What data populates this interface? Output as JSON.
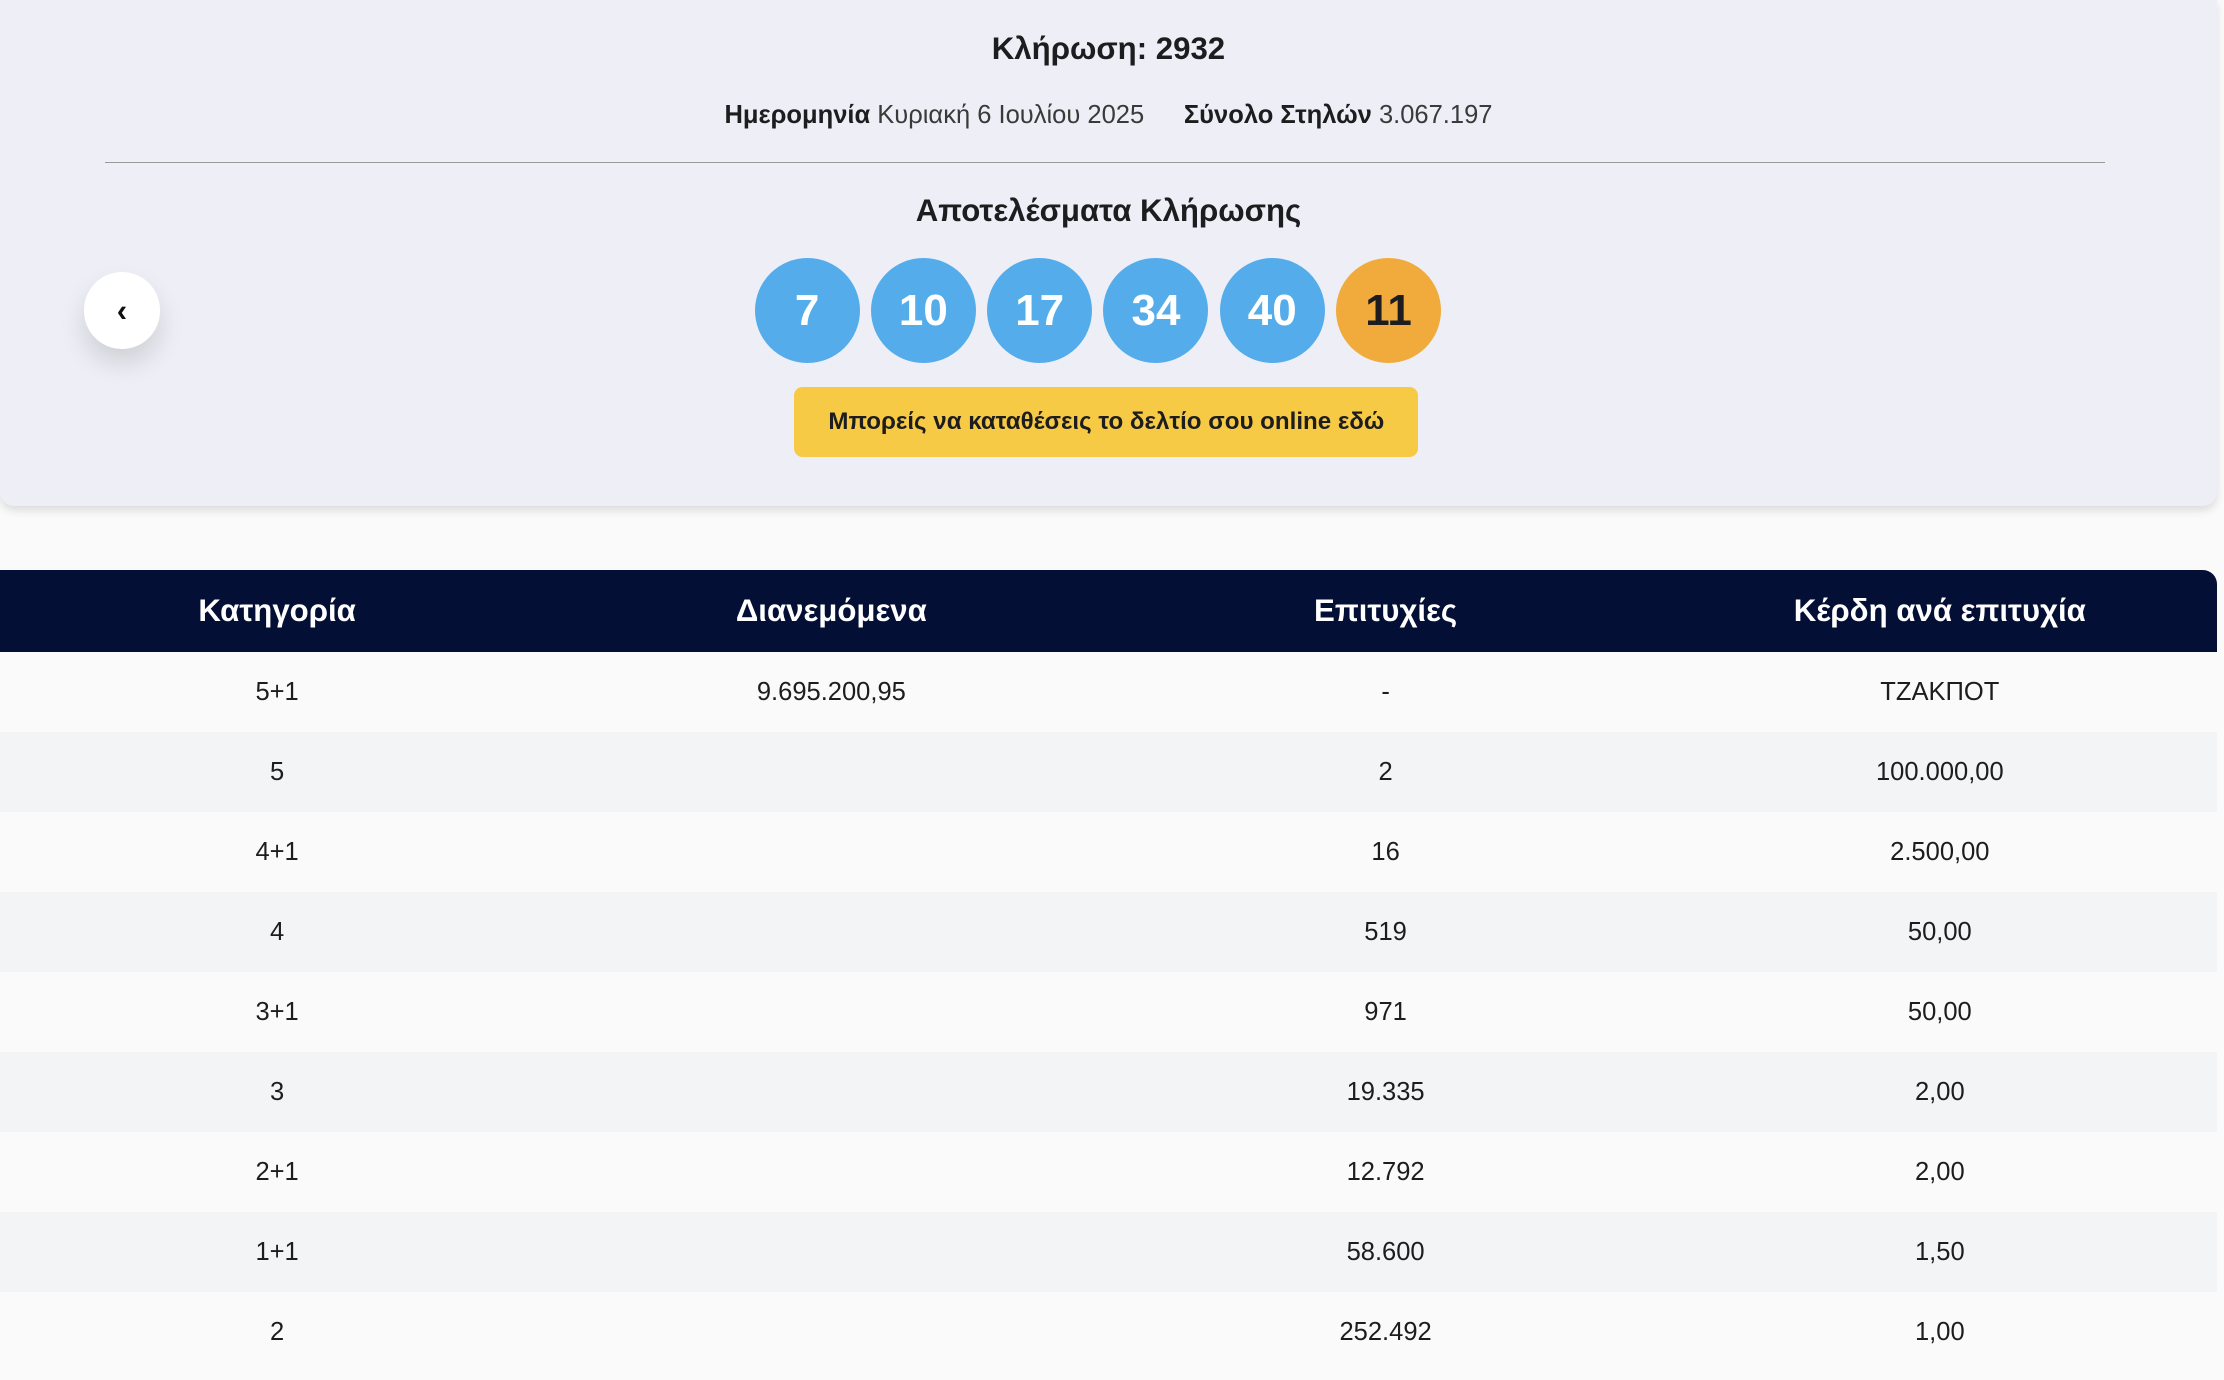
{
  "draw": {
    "title": "Κλήρωση: 2932",
    "date_label": "Ημερομηνία",
    "date_value": "Κυριακή 6 Ιουλίου 2025",
    "columns_label": "Σύνολο Στηλών",
    "columns_value": "3.067.197"
  },
  "results": {
    "title": "Αποτελέσματα Κλήρωσης",
    "numbers": [
      "7",
      "10",
      "17",
      "34",
      "40"
    ],
    "bonus": "11",
    "cta_label": "Μπορείς να καταθέσεις το δελτίο σου online εδώ",
    "back_icon": "chevron-left-icon",
    "colors": {
      "main_ball": "#55acea",
      "bonus_ball": "#f0ab3c",
      "cta": "#f6ca45",
      "table_header": "#040f36"
    }
  },
  "table": {
    "headers": [
      "Κατηγορία",
      "Διανεμόμενα",
      "Επιτυχίες",
      "Κέρδη ανά επιτυχία"
    ],
    "rows": [
      [
        "5+1",
        "9.695.200,95",
        "-",
        "ΤΖΑΚΠΟΤ"
      ],
      [
        "5",
        "",
        "2",
        "100.000,00"
      ],
      [
        "4+1",
        "",
        "16",
        "2.500,00"
      ],
      [
        "4",
        "",
        "519",
        "50,00"
      ],
      [
        "3+1",
        "",
        "971",
        "50,00"
      ],
      [
        "3",
        "",
        "19.335",
        "2,00"
      ],
      [
        "2+1",
        "",
        "12.792",
        "2,00"
      ],
      [
        "1+1",
        "",
        "58.600",
        "1,50"
      ],
      [
        "2",
        "",
        "252.492",
        "1,00"
      ]
    ]
  }
}
